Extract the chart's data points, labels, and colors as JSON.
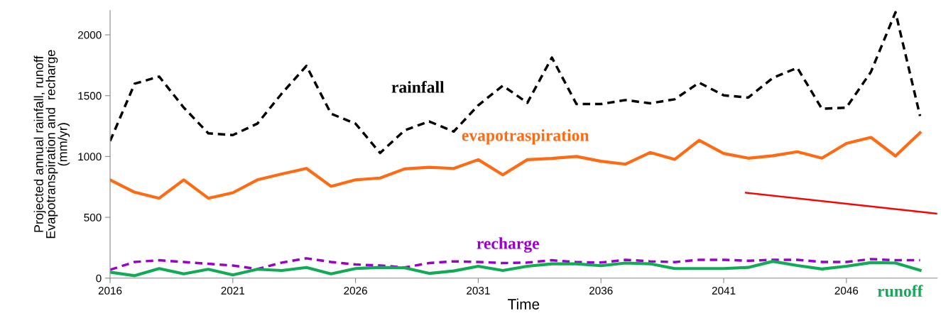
{
  "chart_data": {
    "type": "line",
    "xlabel": "Time",
    "ylabel": "Projected annual rainfall, runoff\nEvapotranspiration and  recharge\n(mm/yr)",
    "x": [
      2016,
      2017,
      2018,
      2019,
      2020,
      2021,
      2022,
      2023,
      2024,
      2025,
      2026,
      2027,
      2028,
      2029,
      2030,
      2031,
      2032,
      2033,
      2034,
      2035,
      2036,
      2037,
      2038,
      2039,
      2040,
      2041,
      2042,
      2043,
      2044,
      2045,
      2046,
      2047,
      2048,
      2049
    ],
    "xlim": [
      2016,
      2049.7
    ],
    "xticks": [
      2016,
      2021,
      2026,
      2031,
      2036,
      2041,
      2046
    ],
    "ylim": [
      0,
      2200
    ],
    "yticks": [
      0,
      500,
      1000,
      1500,
      2000
    ],
    "grid": false,
    "legend": false,
    "series": [
      {
        "name": "rainfall",
        "color": "#000000",
        "line_style": "dashed",
        "values": [
          1127,
          1598,
          1657,
          1402,
          1191,
          1176,
          1270,
          1519,
          1745,
          1352,
          1270,
          1029,
          1215,
          1288,
          1205,
          1421,
          1582,
          1441,
          1813,
          1431,
          1431,
          1464,
          1437,
          1470,
          1607,
          1503,
          1484,
          1646,
          1729,
          1392,
          1402,
          1696,
          2186,
          1333
        ]
      },
      {
        "name": "evapotraspiration",
        "color": "#ff6a13",
        "line_style": "solid",
        "values": [
          808,
          706,
          657,
          808,
          657,
          702,
          808,
          856,
          902,
          755,
          808,
          823,
          898,
          911,
          902,
          974,
          849,
          974,
          984,
          1000,
          961,
          937,
          1033,
          976,
          1133,
          1025,
          986,
          1006,
          1039,
          986,
          1108,
          1157,
          1004,
          1196
        ]
      },
      {
        "name": "recharge",
        "color": "#9900cc",
        "line_style": "dashed",
        "values": [
          69,
          133,
          147,
          133,
          118,
          104,
          75,
          128,
          163,
          133,
          112,
          104,
          88,
          124,
          138,
          133,
          124,
          128,
          147,
          132,
          128,
          151,
          138,
          132,
          151,
          151,
          143,
          151,
          151,
          133,
          133,
          157,
          147,
          147
        ]
      },
      {
        "name": "runoff",
        "color": "#11aa55",
        "line_style": "solid",
        "values": [
          49,
          20,
          79,
          35,
          73,
          26,
          73,
          63,
          88,
          35,
          79,
          88,
          85,
          39,
          59,
          98,
          63,
          98,
          118,
          118,
          102,
          124,
          118,
          79,
          79,
          79,
          88,
          138,
          104,
          75,
          98,
          128,
          124,
          65
        ]
      },
      {
        "type": "line",
        "color": "#ff0000",
        "line_style": "solid",
        "x": [
          2041.9,
          2049.7
        ],
        "values": [
          702,
          530
        ]
      }
    ]
  }
}
